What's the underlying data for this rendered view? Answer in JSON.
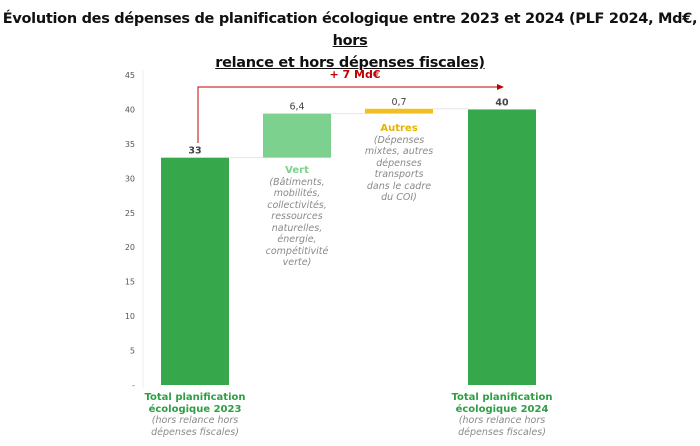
{
  "chart_data": {
    "type": "bar",
    "subtype": "waterfall",
    "title_line1_plain": "Évolution des dépenses de planification écologique entre 2023 et 2024 (PLF 2024, Md€, ",
    "title_line1_underlined": "hors",
    "title_line2_underlined": "relance et hors dépenses fiscales)",
    "ylim": [
      0,
      45
    ],
    "yticks": [
      "-",
      "5",
      "10",
      "15",
      "20",
      "25",
      "30",
      "35",
      "40",
      "45"
    ],
    "ytick_values": [
      0,
      5,
      10,
      15,
      20,
      25,
      30,
      35,
      40,
      45
    ],
    "bars": [
      {
        "base": 0,
        "value": 33,
        "label": "33",
        "color": "#37a74c",
        "name": "Total planification écologique 2023",
        "sub": "(hors relance hors dépenses fiscales)"
      },
      {
        "base": 33,
        "value": 6.4,
        "label": "6,4",
        "color": "#7dd18f",
        "name": "Vert",
        "sub": "(Bâtiments, mobilités, collectivités, ressources naturelles, énergie, compétitivité verte)"
      },
      {
        "base": 39.4,
        "value": 0.7,
        "label": "0,7",
        "color": "#f0c020",
        "name": "Autres",
        "sub": "(Dépenses mixtes, autres dépenses transports dans le cadre du COI)"
      },
      {
        "base": 0,
        "value": 40,
        "label": "40",
        "color": "#37a74c",
        "name": "Total planification écologique 2024",
        "sub": "(hors relance hors dépenses fiscales)"
      }
    ],
    "annotation": {
      "text": "+ 7 Md€",
      "color": "#c00000"
    },
    "grid": false
  }
}
